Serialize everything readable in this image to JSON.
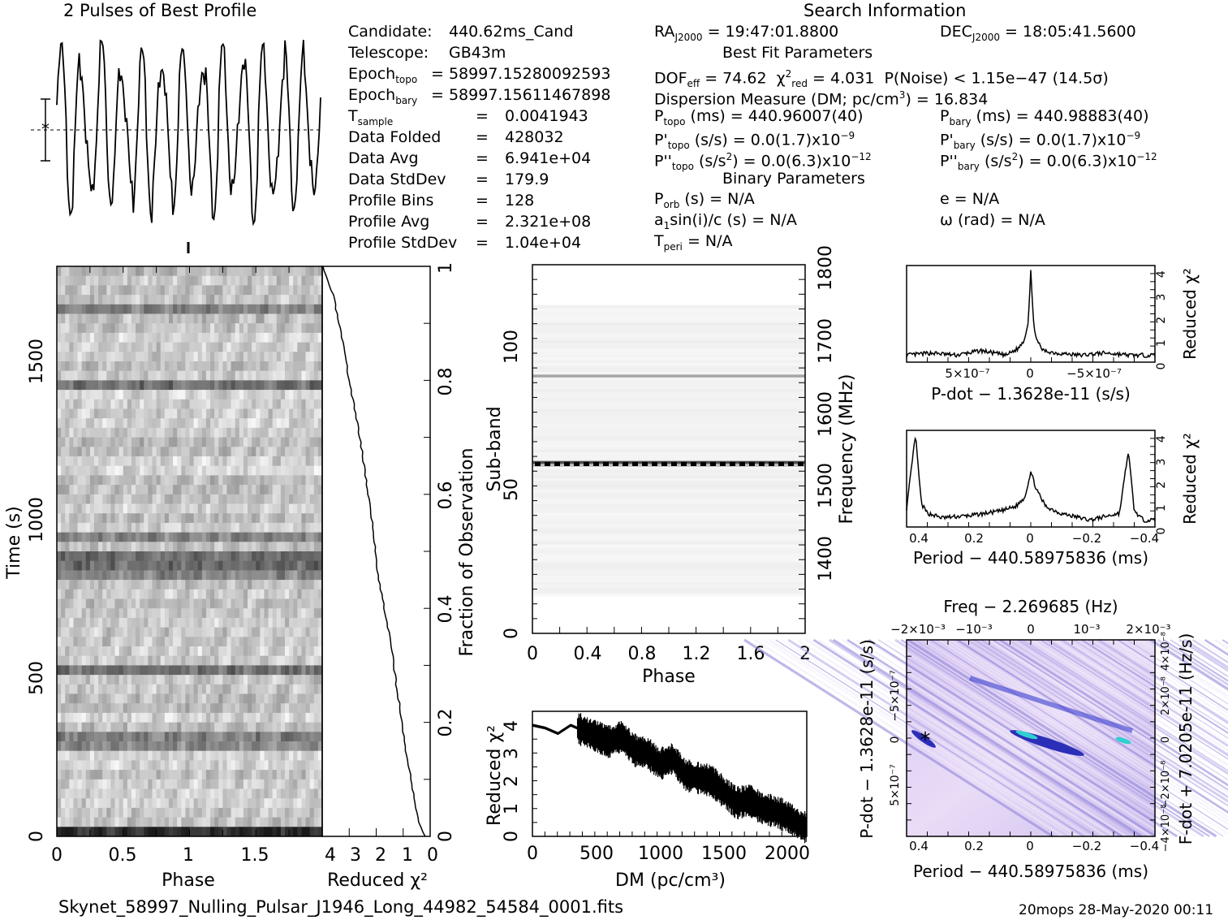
{
  "header": {
    "profile_title": "2 Pulses of Best Profile",
    "search_title": "Search Information",
    "best_fit_title": "Best Fit Parameters",
    "binary_title": "Binary Parameters"
  },
  "candidate_info": [
    {
      "label": "Candidate:",
      "value": "440.62ms_Cand"
    },
    {
      "label": "Telescope:",
      "value": "GB43m"
    },
    {
      "label": "Epoch",
      "sub": "topo",
      "value": "= 58997.15280092593"
    },
    {
      "label": "Epoch",
      "sub": "bary",
      "value": "= 58997.15611467898"
    },
    {
      "label": "T",
      "sub": "sample",
      "eq": "=",
      "value": "0.0041943"
    },
    {
      "label": "Data Folded",
      "eq": "=",
      "value": "428032"
    },
    {
      "label": "Data Avg",
      "eq": "=",
      "value": "6.941e+04"
    },
    {
      "label": "Data StdDev",
      "eq": "=",
      "value": "179.9"
    },
    {
      "label": "Profile Bins",
      "eq": "=",
      "value": "128"
    },
    {
      "label": "Profile Avg",
      "eq": "=",
      "value": "2.321e+08"
    },
    {
      "label": "Profile StdDev",
      "eq": "=",
      "value": "1.04e+04"
    }
  ],
  "search_info": {
    "ra_label": "RA",
    "ra_sub": "J2000",
    "ra_value": "= 19:47:01.8800",
    "dec_label": "DEC",
    "dec_sub": "J2000",
    "dec_value": "= 18:05:41.5600",
    "dof_label": "DOF",
    "dof_sub": "eff",
    "dof_value": "= 74.62",
    "chi2_label": "χ",
    "chi2_sup": "2",
    "chi2_sub": "red",
    "chi2_value": "= 4.031",
    "pnoise": "P(Noise) < 1.15e−47   (14.5σ)",
    "dm_text": "Dispersion Measure (DM; pc/cm",
    "dm_sup": "3",
    "dm_value": ") = 16.834",
    "ptopo_label": "P",
    "ptopo_sub": "topo",
    "ptopo_value": "(ms) =   440.96007(40)",
    "pbary_label": "P",
    "pbary_sub": "bary",
    "pbary_value": "(ms) =   440.98883(40)",
    "pdtopo_label": "P'",
    "pdtopo_sub": "topo",
    "pdtopo_value": "(s/s) = 0.0(1.7)x10",
    "pdtopo_exp": "−9",
    "pdbary_label": "P'",
    "pdbary_sub": "bary",
    "pdbary_value": "(s/s) = 0.0(1.7)x10",
    "pdbary_exp": "−9",
    "pddtopo_label": "P''",
    "pddtopo_sub": "topo",
    "pddtopo_value": "(s/s",
    "pddtopo_unit_exp": "2",
    "pddtopo_tail": ") = 0.0(6.3)x10",
    "pddtopo_exp": "−12",
    "pddbary_label": "P''",
    "pddbary_sub": "bary",
    "pddbary_value": "(s/s",
    "pddbary_unit_exp": "2",
    "pddbary_tail": ") = 0.0(6.3)x10",
    "pddbary_exp": "−12",
    "porb_label": "P",
    "porb_sub": "orb",
    "porb_value": "(s) = N/A",
    "e_value": "e = N/A",
    "a1_label": "a",
    "a1_sub": "1",
    "a1_value": "sin(i)/c (s) = N/A",
    "omega_value": "ω (rad) = N/A",
    "tperi_label": "T",
    "tperi_sub": "peri",
    "tperi_value": "= N/A"
  },
  "footer": {
    "filename": "Skynet_58997_Nulling_Pulsar_J1946_Long_44982_54584_0001.fits",
    "stamp": "20mops 28-May-2020 00:11"
  },
  "chart_data": [
    {
      "id": "profile",
      "type": "line",
      "title": "2 Pulses of Best Profile",
      "x": [
        0,
        0.05,
        0.1,
        0.15,
        0.2,
        0.25,
        0.3,
        0.35,
        0.4,
        0.45,
        0.5,
        0.55,
        0.6,
        0.65,
        0.7,
        0.75,
        0.8,
        0.85,
        0.9,
        0.95,
        1.0,
        1.05,
        1.1,
        1.15,
        1.2,
        1.25,
        1.3,
        1.35,
        1.4,
        1.45,
        1.5,
        1.55,
        1.6,
        1.65,
        1.7,
        1.75,
        1.8,
        1.85,
        1.9,
        1.95,
        2.0
      ],
      "values": [
        0.2,
        0.85,
        -0.6,
        0.9,
        -0.9,
        0.7,
        -0.5,
        0.95,
        -0.3,
        0.6,
        -0.95,
        0.8,
        -0.7,
        0.4,
        -0.8,
        0.9,
        -0.4,
        0.7,
        -0.85,
        0.5,
        0.2,
        0.85,
        -0.6,
        0.9,
        -0.9,
        0.7,
        -0.5,
        0.95,
        -0.3,
        0.6,
        -0.95,
        0.8,
        -0.7,
        0.4,
        -0.8,
        0.9,
        -0.4,
        0.7,
        -0.85,
        0.5,
        0.2
      ]
    },
    {
      "id": "time-phase",
      "type": "heatmap",
      "xlabel": "Phase",
      "ylabel": "Time (s)",
      "xlim": [
        0,
        2
      ],
      "ylim": [
        0,
        1795
      ],
      "x_ticks": [
        "0",
        "0.5",
        "1",
        "1.5"
      ],
      "y_ticks": [
        "0",
        "500",
        "1000",
        "1500"
      ],
      "dark_time_bands": [
        25,
        290,
        335,
        540,
        830,
        880,
        910,
        950,
        1440,
        1680
      ]
    },
    {
      "id": "chi2-vs-time",
      "type": "line",
      "xlabel": "Reduced χ²",
      "ylabel": "Fraction of Observation",
      "xlim": [
        4,
        0
      ],
      "ylim": [
        0,
        1
      ],
      "x_ticks": [
        "4",
        "3",
        "2",
        "1",
        "0"
      ],
      "y_ticks": [
        "0",
        "0.2",
        "0.4",
        "0.6",
        "0.8",
        "1"
      ],
      "x": [
        4.0,
        3.6,
        3.3,
        3.0,
        2.6,
        2.2,
        1.9,
        1.5,
        1.2,
        0.9,
        0.6,
        0.4,
        0.2
      ],
      "y": [
        1.0,
        0.95,
        0.88,
        0.8,
        0.7,
        0.57,
        0.45,
        0.35,
        0.25,
        0.15,
        0.07,
        0.02,
        0.0
      ]
    },
    {
      "id": "subband-phase",
      "type": "heatmap",
      "xlabel": "Phase",
      "ylabel": "Sub-band",
      "ylabel2": "Frequency (MHz)",
      "xlim": [
        0,
        2
      ],
      "ylim": [
        0,
        128
      ],
      "x_ticks": [
        "0",
        "0.4",
        "0.8",
        "1.2",
        "1.6",
        "2"
      ],
      "y_ticks": [
        "0",
        "50",
        "100"
      ],
      "freq_ticks": [
        "1400",
        "1500",
        "1600",
        "1700",
        "1800"
      ],
      "bright_bands": [
        58,
        89
      ]
    },
    {
      "id": "chi2-vs-dm",
      "type": "line",
      "xlabel": "DM (pc/cm³)",
      "ylabel": "Reduced χ²",
      "xlim": [
        0,
        2150
      ],
      "ylim": [
        0,
        4.5
      ],
      "x_ticks": [
        "0",
        "500",
        "1000",
        "1500",
        "2000"
      ],
      "y_ticks": [
        "0",
        "1",
        "2",
        "3",
        "4"
      ],
      "x": [
        0,
        100,
        200,
        300,
        400,
        500,
        600,
        700,
        800,
        900,
        1000,
        1100,
        1200,
        1300,
        1400,
        1500,
        1600,
        1700,
        1800,
        1900,
        2000,
        2100,
        2150
      ],
      "y": [
        4.0,
        3.9,
        3.7,
        4.0,
        3.8,
        3.6,
        3.4,
        3.6,
        3.1,
        3.0,
        2.6,
        2.8,
        2.2,
        2.1,
        2.0,
        1.6,
        1.2,
        1.3,
        1.0,
        0.9,
        0.7,
        0.4,
        0.3
      ]
    },
    {
      "id": "chi2-vs-pdot",
      "type": "line",
      "xlabel": "P-dot − 1.3628e-11 (s/s)",
      "ylabel": "Reduced χ²",
      "x_ticks": [
        "5×10⁻⁷",
        "0",
        "−5×10⁻⁷"
      ],
      "y_ticks": [
        "0",
        "1",
        "2",
        "3",
        "4"
      ],
      "ylim": [
        0,
        4.2
      ],
      "x": [
        1.0,
        0.8,
        0.6,
        0.4,
        0.2,
        0.1,
        0.05,
        0.02,
        0.0,
        -0.02,
        -0.05,
        -0.1,
        -0.2,
        -0.4,
        -0.6,
        -0.8,
        -1.0
      ],
      "y": [
        0.3,
        0.4,
        0.3,
        0.5,
        0.3,
        0.6,
        1.0,
        1.8,
        4.0,
        1.8,
        0.9,
        0.5,
        0.4,
        0.3,
        0.4,
        0.3,
        0.3
      ]
    },
    {
      "id": "chi2-vs-period",
      "type": "line",
      "xlabel": "Period − 440.58975836 (ms)",
      "ylabel": "Reduced χ²",
      "x_ticks": [
        "0.4",
        "0.2",
        "0",
        "−0.2",
        "−0.4"
      ],
      "y_ticks": [
        "0",
        "1",
        "2",
        "3",
        "4"
      ],
      "ylim": [
        0,
        4.2
      ],
      "x": [
        0.42,
        0.39,
        0.37,
        0.35,
        0.3,
        0.2,
        0.1,
        0.05,
        0.02,
        0.0,
        -0.02,
        -0.05,
        -0.1,
        -0.2,
        -0.3,
        -0.33,
        -0.35,
        -0.38,
        -0.42
      ],
      "y": [
        0.8,
        4.0,
        1.0,
        0.6,
        0.4,
        0.5,
        0.7,
        0.9,
        1.3,
        2.4,
        1.6,
        0.9,
        0.6,
        0.3,
        0.6,
        3.3,
        0.7,
        0.3,
        0.3
      ]
    },
    {
      "id": "period-pdot-plane",
      "type": "heatmap",
      "title": "Freq − 2.269685 (Hz)",
      "xlabel": "Period − 440.58975836 (ms)",
      "ylabel": "P-dot − 1.3628e-11 (s/s)",
      "ylabel2": "F-dot + 7.0205e-11 (Hz/s)",
      "x_ticks": [
        "0.4",
        "0.2",
        "0",
        "−0.2",
        "−0.4"
      ],
      "top_ticks": [
        "−2×10⁻³",
        "−10⁻³",
        "0",
        "10⁻³",
        "2×10⁻³"
      ],
      "left_ticks": [
        "−5×10⁻⁷",
        "0",
        "5×10⁻⁷"
      ],
      "right_ticks": [
        "4×10⁻⁸",
        "2×10⁻⁸",
        "0",
        "−2×10⁻⁸",
        "−4×10⁻⁸"
      ]
    }
  ]
}
